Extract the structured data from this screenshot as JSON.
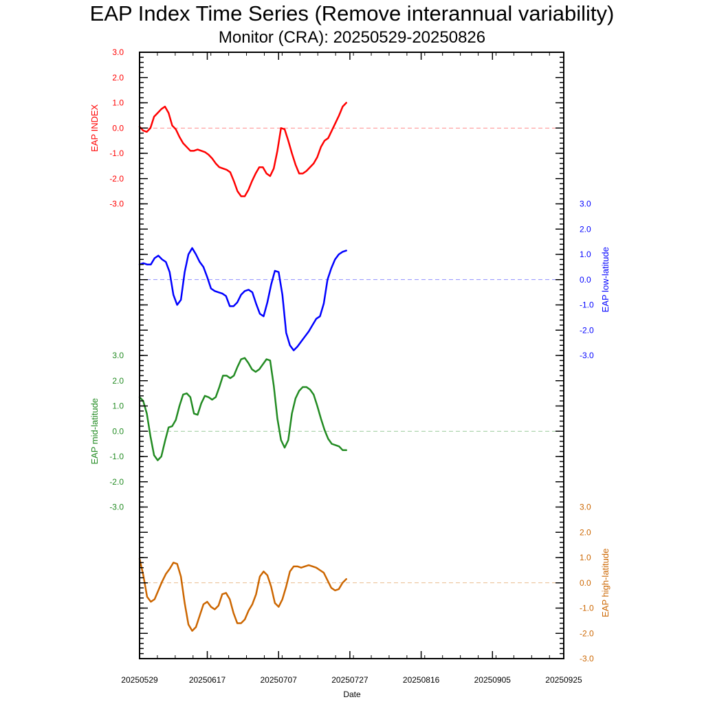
{
  "title": "EAP Index Time Series (Remove interannual variability)",
  "subtitle": "Monitor (CRA): 20250529-20250826",
  "x_axis": {
    "label": "Date",
    "ticks": [
      "20250529",
      "20250617",
      "20250707",
      "20250727",
      "20250816",
      "20250905",
      "20250925"
    ]
  },
  "chart_data": {
    "type": "line",
    "title": "EAP Index Time Series (Remove interannual variability)",
    "subtitle": "Monitor (CRA): 20250529-20250826",
    "xlabel": "Date",
    "x_range": [
      "20250529",
      "20250925"
    ],
    "x_start_date": "20250529",
    "y_range": [
      -3.0,
      3.0
    ],
    "panel_ticks": [
      "3.0",
      "2.0",
      "1.0",
      "0.0",
      "-1.0",
      "-2.0",
      "-3.0"
    ],
    "grid": false,
    "series": [
      {
        "name": "EAP INDEX",
        "color": "#ff0000",
        "axis_side": "left",
        "values": [
          0.05,
          -0.1,
          -0.15,
          0.0,
          0.45,
          0.6,
          0.75,
          0.85,
          0.6,
          0.1,
          -0.05,
          -0.35,
          -0.6,
          -0.75,
          -0.9,
          -0.9,
          -0.85,
          -0.9,
          -0.95,
          -1.05,
          -1.2,
          -1.4,
          -1.55,
          -1.6,
          -1.65,
          -1.75,
          -2.1,
          -2.5,
          -2.7,
          -2.7,
          -2.45,
          -2.1,
          -1.8,
          -1.55,
          -1.55,
          -1.8,
          -1.9,
          -1.6,
          -0.9,
          0.0,
          -0.05,
          -0.5,
          -1.0,
          -1.45,
          -1.8,
          -1.8,
          -1.7,
          -1.55,
          -1.4,
          -1.15,
          -0.75,
          -0.5,
          -0.4,
          -0.1,
          0.2,
          0.5,
          0.85,
          1.0
        ]
      },
      {
        "name": "EAP low-latitude",
        "color": "#0000ff",
        "axis_side": "right",
        "values": [
          0.6,
          0.65,
          0.6,
          0.6,
          0.85,
          0.95,
          0.8,
          0.7,
          0.3,
          -0.6,
          -1.0,
          -0.8,
          0.3,
          1.0,
          1.25,
          1.0,
          0.7,
          0.5,
          0.1,
          -0.35,
          -0.45,
          -0.5,
          -0.55,
          -0.65,
          -1.05,
          -1.05,
          -0.9,
          -0.6,
          -0.45,
          -0.4,
          -0.5,
          -0.95,
          -1.35,
          -1.45,
          -0.9,
          -0.2,
          0.35,
          0.3,
          -0.6,
          -2.1,
          -2.6,
          -2.8,
          -2.65,
          -2.45,
          -2.25,
          -2.05,
          -1.8,
          -1.55,
          -1.45,
          -0.95,
          0.0,
          0.45,
          0.8,
          1.0,
          1.1,
          1.15
        ]
      },
      {
        "name": "EAP mid-latitude",
        "color": "#228b22",
        "axis_side": "left",
        "values": [
          1.35,
          1.2,
          0.7,
          -0.2,
          -0.95,
          -1.15,
          -1.0,
          -0.4,
          0.15,
          0.2,
          0.45,
          1.0,
          1.45,
          1.5,
          1.35,
          0.7,
          0.65,
          1.1,
          1.4,
          1.35,
          1.25,
          1.35,
          1.75,
          2.2,
          2.2,
          2.1,
          2.2,
          2.55,
          2.85,
          2.9,
          2.7,
          2.45,
          2.35,
          2.45,
          2.65,
          2.85,
          2.8,
          1.8,
          0.5,
          -0.35,
          -0.65,
          -0.35,
          0.7,
          1.3,
          1.6,
          1.75,
          1.75,
          1.65,
          1.45,
          1.0,
          0.5,
          0.05,
          -0.3,
          -0.5,
          -0.55,
          -0.6,
          -0.75,
          -0.75
        ]
      },
      {
        "name": "EAP high-latitude",
        "color": "#cc6600",
        "axis_side": "right",
        "values": [
          0.95,
          0.3,
          -0.55,
          -0.75,
          -0.65,
          -0.3,
          0.05,
          0.35,
          0.55,
          0.8,
          0.75,
          0.25,
          -0.8,
          -1.65,
          -1.9,
          -1.75,
          -1.3,
          -0.85,
          -0.75,
          -0.95,
          -1.05,
          -0.9,
          -0.45,
          -0.4,
          -0.65,
          -1.2,
          -1.6,
          -1.6,
          -1.45,
          -1.1,
          -0.85,
          -0.45,
          0.25,
          0.45,
          0.3,
          -0.15,
          -0.8,
          -0.95,
          -0.65,
          -0.15,
          0.45,
          0.65,
          0.65,
          0.6,
          0.65,
          0.7,
          0.65,
          0.6,
          0.5,
          0.4,
          0.1,
          -0.2,
          -0.3,
          -0.25,
          0.0,
          0.15
        ]
      }
    ]
  }
}
